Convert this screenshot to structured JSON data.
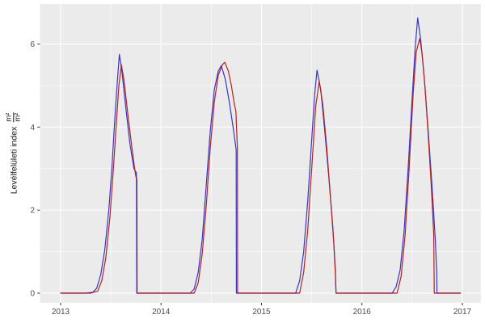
{
  "figure": {
    "background": "#FFFFFF"
  },
  "chart_data": {
    "type": "line",
    "title": "",
    "xlabel": "",
    "ylabel": "Levélfelületi index",
    "unit_fraction": {
      "numerator": "m²",
      "denominator": "m²"
    },
    "legend": "none",
    "grid": {
      "panel_bg": "#EBEBEB",
      "major_color": "#FFFFFF",
      "minor_color": "#FFFFFF"
    },
    "axis_text_color": "#4D4D4D",
    "tick_mark_color": "#333333",
    "xlim": [
      2012.795,
      2017.185
    ],
    "ylim": [
      -0.233,
      6.963
    ],
    "x_ticks": [
      2013,
      2014,
      2015,
      2016,
      2017
    ],
    "x_tick_labels": [
      "2013",
      "2014",
      "2015",
      "2016",
      "2017"
    ],
    "x_minor_ticks": [
      2013.5,
      2014.5,
      2015.5,
      2016.5
    ],
    "y_ticks": [
      0,
      2,
      4,
      6
    ],
    "y_tick_labels": [
      "0",
      "2",
      "4",
      "6"
    ],
    "y_minor_ticks": [
      1,
      3,
      5
    ],
    "series": [
      {
        "name": "blue-line",
        "color": "#3535CE",
        "points": [
          [
            2013.0,
            0
          ],
          [
            2013.25,
            0
          ],
          [
            2013.32,
            0.02
          ],
          [
            2013.36,
            0.12
          ],
          [
            2013.4,
            0.45
          ],
          [
            2013.44,
            1.05
          ],
          [
            2013.48,
            2.0
          ],
          [
            2013.51,
            3.0
          ],
          [
            2013.54,
            4.2
          ],
          [
            2013.565,
            5.1
          ],
          [
            2013.585,
            5.75
          ],
          [
            2013.61,
            5.35
          ],
          [
            2013.65,
            4.45
          ],
          [
            2013.69,
            3.6
          ],
          [
            2013.73,
            3.0
          ],
          [
            2013.755,
            2.9
          ],
          [
            2013.758,
            0
          ],
          [
            2014.0,
            0
          ],
          [
            2014.29,
            0
          ],
          [
            2014.33,
            0.1
          ],
          [
            2014.37,
            0.5
          ],
          [
            2014.41,
            1.3
          ],
          [
            2014.45,
            2.6
          ],
          [
            2014.49,
            3.9
          ],
          [
            2014.53,
            4.9
          ],
          [
            2014.57,
            5.35
          ],
          [
            2014.6,
            5.48
          ],
          [
            2014.64,
            5.15
          ],
          [
            2014.68,
            4.6
          ],
          [
            2014.72,
            3.95
          ],
          [
            2014.748,
            3.45
          ],
          [
            2014.75,
            0
          ],
          [
            2015.0,
            0
          ],
          [
            2015.34,
            0
          ],
          [
            2015.38,
            0.3
          ],
          [
            2015.42,
            1.0
          ],
          [
            2015.46,
            2.2
          ],
          [
            2015.5,
            3.7
          ],
          [
            2015.53,
            4.8
          ],
          [
            2015.553,
            5.37
          ],
          [
            2015.59,
            4.9
          ],
          [
            2015.63,
            3.9
          ],
          [
            2015.67,
            2.8
          ],
          [
            2015.71,
            1.6
          ],
          [
            2015.735,
            0.6
          ],
          [
            2015.742,
            0
          ],
          [
            2016.0,
            0
          ],
          [
            2016.3,
            0
          ],
          [
            2016.34,
            0.15
          ],
          [
            2016.38,
            0.55
          ],
          [
            2016.42,
            1.5
          ],
          [
            2016.46,
            3.0
          ],
          [
            2016.5,
            4.7
          ],
          [
            2016.53,
            5.9
          ],
          [
            2016.555,
            6.63
          ],
          [
            2016.585,
            6.1
          ],
          [
            2016.62,
            5.2
          ],
          [
            2016.66,
            3.9
          ],
          [
            2016.7,
            2.5
          ],
          [
            2016.73,
            1.3
          ],
          [
            2016.745,
            0.5
          ],
          [
            2016.747,
            0
          ],
          [
            2016.98,
            0
          ]
        ]
      },
      {
        "name": "red-line",
        "color": "#B22222",
        "points": [
          [
            2013.0,
            0
          ],
          [
            2013.3,
            0
          ],
          [
            2013.37,
            0.05
          ],
          [
            2013.41,
            0.3
          ],
          [
            2013.45,
            0.85
          ],
          [
            2013.49,
            1.8
          ],
          [
            2013.52,
            2.8
          ],
          [
            2013.55,
            3.9
          ],
          [
            2013.58,
            5.0
          ],
          [
            2013.605,
            5.5
          ],
          [
            2013.63,
            5.15
          ],
          [
            2013.67,
            4.3
          ],
          [
            2013.71,
            3.5
          ],
          [
            2013.74,
            2.95
          ],
          [
            2013.75,
            2.8
          ],
          [
            2013.76,
            2.75
          ],
          [
            2013.762,
            0
          ],
          [
            2014.0,
            0
          ],
          [
            2014.33,
            0
          ],
          [
            2014.37,
            0.25
          ],
          [
            2014.41,
            0.95
          ],
          [
            2014.45,
            2.1
          ],
          [
            2014.49,
            3.5
          ],
          [
            2014.53,
            4.6
          ],
          [
            2014.57,
            5.25
          ],
          [
            2014.61,
            5.5
          ],
          [
            2014.635,
            5.56
          ],
          [
            2014.67,
            5.35
          ],
          [
            2014.7,
            5.0
          ],
          [
            2014.73,
            4.55
          ],
          [
            2014.745,
            4.38
          ],
          [
            2014.76,
            3.5
          ],
          [
            2014.762,
            0
          ],
          [
            2015.0,
            0
          ],
          [
            2015.38,
            0
          ],
          [
            2015.42,
            0.5
          ],
          [
            2015.46,
            1.5
          ],
          [
            2015.5,
            3.0
          ],
          [
            2015.54,
            4.5
          ],
          [
            2015.575,
            5.11
          ],
          [
            2015.61,
            4.55
          ],
          [
            2015.65,
            3.5
          ],
          [
            2015.69,
            2.2
          ],
          [
            2015.72,
            1.2
          ],
          [
            2015.737,
            0.4
          ],
          [
            2015.742,
            0
          ],
          [
            2016.0,
            0
          ],
          [
            2016.35,
            0
          ],
          [
            2016.39,
            0.4
          ],
          [
            2016.43,
            1.4
          ],
          [
            2016.47,
            3.0
          ],
          [
            2016.51,
            4.8
          ],
          [
            2016.54,
            5.8
          ],
          [
            2016.575,
            6.13
          ],
          [
            2016.6,
            5.75
          ],
          [
            2016.63,
            4.9
          ],
          [
            2016.66,
            3.8
          ],
          [
            2016.69,
            2.6
          ],
          [
            2016.715,
            1.4
          ],
          [
            2016.72,
            0
          ],
          [
            2016.98,
            0
          ]
        ]
      }
    ]
  }
}
